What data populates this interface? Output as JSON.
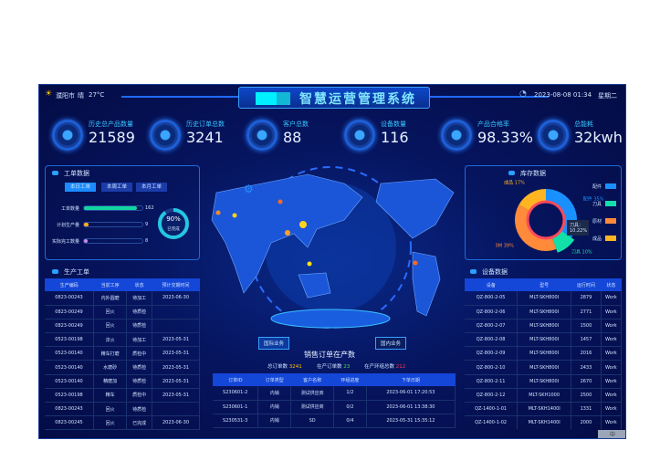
{
  "header": {
    "city": "濮阳市",
    "weather": "晴",
    "temp": "27°C",
    "title": "智慧运营管理系统",
    "datetime": "2023-08-08 01:34",
    "weekday": "星期二"
  },
  "kpis": [
    {
      "label": "历史总产品数量",
      "value": "21589"
    },
    {
      "label": "历史订单总数",
      "value": "3241"
    },
    {
      "label": "客户总数",
      "value": "88"
    },
    {
      "label": "设备数量",
      "value": "116"
    },
    {
      "label": "产品合格率",
      "value": "98.33%"
    },
    {
      "label": "总能耗",
      "value": "32kwh"
    }
  ],
  "work_orders": {
    "title": "工单数据",
    "tabs": [
      "本日工单",
      "本周工单",
      "本月工单"
    ],
    "active_tab": 0,
    "bars": [
      {
        "label": "工单数量",
        "value": "162",
        "fraction": 0.9,
        "color": "#12d6a0"
      },
      {
        "label": "计划生产量",
        "value": "9",
        "fraction": 0.08,
        "color": "#ffb01a"
      },
      {
        "label": "实际完工数量",
        "value": "8",
        "fraction": 0.06,
        "color": "#c98cf0"
      }
    ],
    "ring": {
      "percent": "90%",
      "label": "已完成",
      "fraction": 0.9
    }
  },
  "production": {
    "title": "生产工单",
    "columns": [
      "生产编码",
      "当前工序",
      "状态",
      "预计交期时间"
    ],
    "rows": [
      [
        "0823-00243",
        "内外圆磨",
        "待加工",
        "2023-06-30"
      ],
      [
        "0823-00249",
        "回火",
        "待质检",
        ""
      ],
      [
        "0823-00249",
        "回火",
        "待质检",
        ""
      ],
      [
        "0523-00198",
        "淬火",
        "待加工",
        "2023-05-31"
      ],
      [
        "0523-00140",
        "精车打磨",
        "质检中",
        "2023-05-31"
      ],
      [
        "0523-00140",
        "水磨砂",
        "待质检",
        "2023-05-31"
      ],
      [
        "0523-00140",
        "精磨加",
        "待质检",
        "2023-05-31"
      ],
      [
        "0523-00198",
        "精车",
        "质检中",
        "2023-05-31"
      ],
      [
        "0823-00243",
        "回火",
        "待质检",
        ""
      ],
      [
        "0823-00245",
        "回火",
        "已完成",
        "2023-06-30"
      ]
    ]
  },
  "inventory": {
    "title": "库存数据",
    "tooltip": "刀具：10.22%",
    "slices": [
      {
        "name": "配件",
        "value": 35,
        "label": "35%",
        "color": "#1a90ff"
      },
      {
        "name": "刀具",
        "value": 10,
        "label": "10%",
        "color": "#12e0a8"
      },
      {
        "name": "原材",
        "value": 39,
        "label": "39%",
        "color": "#ff8a3a"
      },
      {
        "name": "成品",
        "value": 17,
        "label": "17%",
        "color": "#ffb522"
      }
    ]
  },
  "equipment": {
    "title": "设备数据",
    "columns": [
      "设备",
      "型号",
      "运行时间",
      "状态"
    ],
    "rows": [
      [
        "QZ-800-2-05",
        "MLT-SKH800I",
        "2879",
        "Work"
      ],
      [
        "QZ-800-2-06",
        "MLT-SKH800I",
        "2771",
        "Work"
      ],
      [
        "QZ-800-2-07",
        "MLT-SKH800I",
        "1500",
        "Work"
      ],
      [
        "QZ-800-2-08",
        "MLT-SKH800I",
        "1457",
        "Work"
      ],
      [
        "QZ-800-2-09",
        "MLT-SKH800I",
        "2016",
        "Work"
      ],
      [
        "QZ-800-2-10",
        "MLT-SKH800I",
        "2433",
        "Work"
      ],
      [
        "QZ-800-2-11",
        "MLT-SKH800I",
        "2670",
        "Work"
      ],
      [
        "QZ-800-2-12",
        "MLT-SKH1000",
        "2500",
        "Work"
      ],
      [
        "QZ-1400-1-01",
        "MLT-SKH1400I",
        "1331",
        "Work"
      ],
      [
        "QZ-1400-1-02",
        "MLT-SKH1400I",
        "2000",
        "Work"
      ]
    ]
  },
  "map": {
    "buttons": [
      "国际业务",
      "国内业务"
    ]
  },
  "sales": {
    "title": "销售订单在产数",
    "total_label": "总订单数",
    "total": "3241",
    "inprod_label": "在产订单数",
    "inprod": "23",
    "rings_label": "在产环组总数",
    "rings": "212",
    "columns": [
      "订单ID",
      "订单类型",
      "客户名称",
      "环组进度",
      "下单日期"
    ],
    "rows": [
      [
        "S230601-2",
        "内销",
        "测试供应商",
        "1/2",
        "2023-06-01 17:20:53"
      ],
      [
        "S230601-1",
        "内销",
        "测试供应商",
        "0/2",
        "2023-06-01 13:38:30"
      ],
      [
        "S230531-3",
        "内销",
        "SD",
        "0/4",
        "2023-05-31 15:35:12"
      ]
    ]
  },
  "watermark": "中"
}
